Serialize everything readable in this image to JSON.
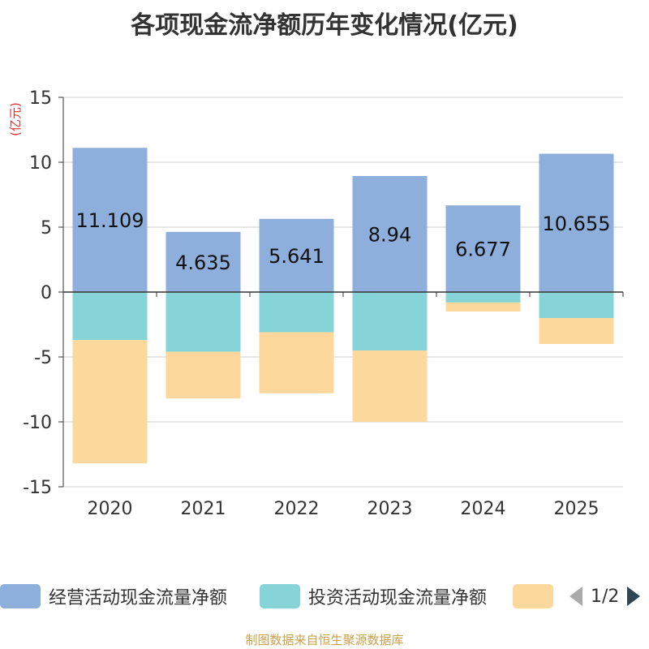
{
  "title": "各项现金流净额历年变化情况(亿元)",
  "footer": "制图数据来自恒生聚源数据库",
  "legend": {
    "items": [
      {
        "label": "经营活动现金流量净额",
        "color": "#8eaedb"
      },
      {
        "label": "投资活动现金流量净额",
        "color": "#86d4d8"
      },
      {
        "label": "",
        "color": "#fdd89c"
      }
    ],
    "page": "1/2"
  },
  "chart_data": {
    "type": "bar",
    "stacked": true,
    "categories": [
      "2020",
      "2021",
      "2022",
      "2023",
      "2024",
      "2025"
    ],
    "series": [
      {
        "name": "经营活动现金流量净额",
        "color": "#8eaedb",
        "values": [
          11.109,
          4.635,
          5.641,
          8.94,
          6.677,
          10.655
        ],
        "labels": [
          "11.109",
          "4.635",
          "5.641",
          "8.94",
          "6.677",
          "10.655"
        ]
      },
      {
        "name": "投资活动现金流量净额",
        "color": "#86d4d8",
        "values": [
          -3.7,
          -4.6,
          -3.1,
          -4.5,
          -0.8,
          -2.0
        ]
      },
      {
        "name": "",
        "color": "#fdd89c",
        "values": [
          -9.5,
          -3.6,
          -4.7,
          -5.5,
          -0.7,
          -2.0
        ]
      }
    ],
    "ylabel": "(亿元)",
    "ylim": [
      -15,
      15
    ],
    "yticks": [
      15,
      10,
      5,
      0,
      -5,
      -10,
      -15
    ],
    "ytick_labels": [
      "15",
      "10",
      "5",
      "0",
      "-5",
      "-10",
      "-15"
    ],
    "grid": true
  }
}
